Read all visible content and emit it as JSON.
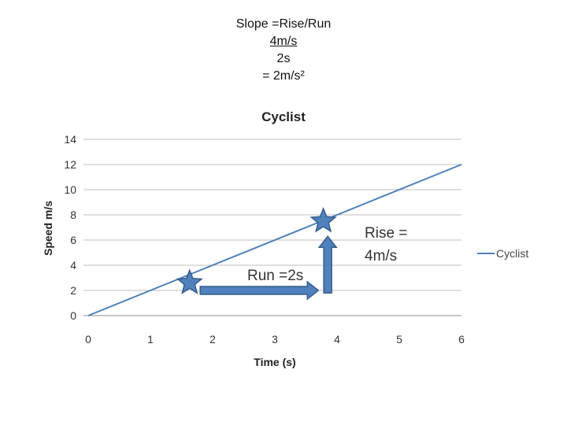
{
  "heading": {
    "line1": "Slope =Rise/Run",
    "line2": "4m/s",
    "line3": "2s",
    "line4": "= 2m/s²"
  },
  "chart_data": {
    "type": "line",
    "title": "Cyclist",
    "xlabel": "Time (s)",
    "ylabel": "Speed m/s",
    "xlim": [
      0,
      6
    ],
    "ylim": [
      0,
      14
    ],
    "x_ticks": [
      "0",
      "1",
      "2",
      "3",
      "4",
      "5",
      "6"
    ],
    "y_ticks": [
      "0",
      "2",
      "4",
      "6",
      "8",
      "10",
      "12",
      "14"
    ],
    "grid": true,
    "legend_position": "right",
    "series": [
      {
        "name": "Cyclist",
        "x": [
          0,
          6
        ],
        "y": [
          0,
          12
        ],
        "color": "#4f81bd"
      }
    ],
    "annotations": {
      "star_points": [
        {
          "x": 1.63,
          "y": 2.6
        },
        {
          "x": 3.78,
          "y": 7.5
        }
      ],
      "run_arrow": {
        "from": [
          1.8,
          2.0
        ],
        "to": [
          3.7,
          2.0
        ],
        "label": "Run =2s"
      },
      "rise_arrow": {
        "from": [
          3.85,
          1.8
        ],
        "to": [
          3.85,
          6.3
        ],
        "label_line1": "Rise =",
        "label_line2": "4m/s"
      },
      "shape_color": "#4f81bd",
      "shape_stroke": "#385d8a"
    }
  }
}
